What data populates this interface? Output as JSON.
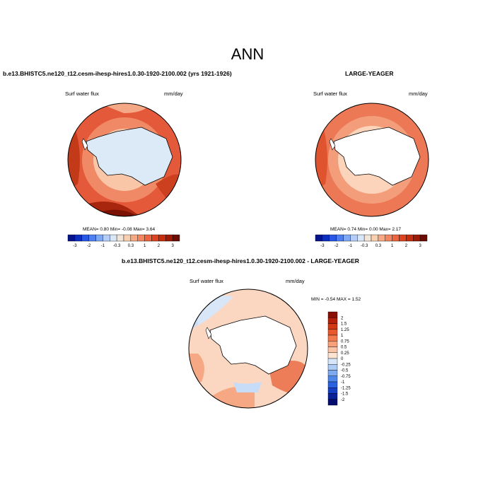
{
  "title": "ANN",
  "panels": {
    "model": {
      "title": "b.e13.BHISTC5.ne120_t12.cesm-ihesp-hires1.0.30-1920-2100.002 (yrs 1921-1926)",
      "variable": "Surf water flux",
      "units": "mm/day",
      "stats": {
        "mean_label": "MEAN=",
        "mean": "0.80",
        "min_label": "Min=",
        "min": "-0.08",
        "max_label": "Max=",
        "max": "3.64"
      }
    },
    "obs": {
      "title": "LARGE-YEAGER",
      "variable": "Surf water flux",
      "units": "mm/day",
      "stats": {
        "mean_label": "MEAN=",
        "mean": "0.74",
        "min_label": "Min=",
        "min": "0.00",
        "max_label": "Max=",
        "max": "2.17"
      }
    },
    "diff": {
      "title": "b.e13.BHISTC5.ne120_t12.cesm-ihesp-hires1.0.30-1920-2100.002 - LARGE-YEAGER",
      "variable": "Surf water flux",
      "units": "mm/day",
      "minmax": {
        "min_label": "MIN =",
        "min": "-0.54",
        "max_label": "MAX =",
        "max": "1.52"
      }
    }
  },
  "colorbar_abs": {
    "labels": [
      "-3",
      "-2",
      "-1",
      "-0.3",
      "0.3",
      "1",
      "2",
      "3"
    ],
    "colors": [
      "#05148c",
      "#0c2fc0",
      "#2857e6",
      "#4f80f0",
      "#80a9f5",
      "#b3cdf8",
      "#d8e6f8",
      "#f2e4d6",
      "#f9cfb0",
      "#f7a983",
      "#f28660",
      "#ea6540",
      "#dc4420",
      "#c42d0e",
      "#9c1a06",
      "#6b0b02"
    ]
  },
  "colorbar_diff": {
    "labels": [
      "2",
      "1.5",
      "1.25",
      "1",
      "0.75",
      "0.5",
      "0.25",
      "0",
      "-0.25",
      "-0.5",
      "-0.75",
      "-1",
      "-1.25",
      "-1.5",
      "-2"
    ],
    "colors": [
      "#8a0f04",
      "#b5210a",
      "#d33a14",
      "#e9572c",
      "#f27a4e",
      "#f7a07a",
      "#fbc4a8",
      "#fde3d2",
      "#d6e6f8",
      "#aecbf4",
      "#7eaaef",
      "#4f86ea",
      "#2a61e0",
      "#1540c4",
      "#0a2299",
      "#050e6e"
    ]
  },
  "map_palette": {
    "land": "#ffffff",
    "model_ice": "#dceaf8",
    "colors_abs": [
      "#fbe1cf",
      "#f9c8aa",
      "#f5a382",
      "#ee7f5c",
      "#e45c37",
      "#cf3e1c",
      "#a82810"
    ],
    "colors_diff": [
      "#c7dcf6",
      "#e8f0fa",
      "#fde6d8",
      "#fbcdb2",
      "#f6a885",
      "#ec7d58"
    ]
  }
}
